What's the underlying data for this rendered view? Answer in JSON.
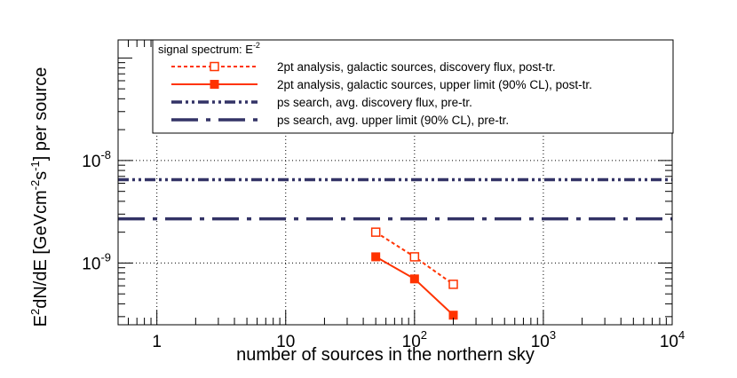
{
  "chart_data": {
    "type": "line",
    "xscale": "log",
    "yscale": "log",
    "xlim": [
      0.5,
      10000
    ],
    "ylim": [
      2.5e-10,
      1.5e-07
    ],
    "grid": true,
    "xlabel": "number of sources in the northern sky",
    "ylabel_main": "E",
    "ylabel_sup1": "2",
    "ylabel_mid": "dN/dE [GeVcm",
    "ylabel_sup2": "-2",
    "ylabel_s": "s",
    "ylabel_sup3": "-1",
    "ylabel_end": "] per source",
    "x_ticks": [
      {
        "value": 1,
        "base": "1",
        "exp": ""
      },
      {
        "value": 10,
        "base": "10",
        "exp": ""
      },
      {
        "value": 100,
        "base": "10",
        "exp": "2"
      },
      {
        "value": 1000,
        "base": "10",
        "exp": "3"
      },
      {
        "value": 10000,
        "base": "10",
        "exp": "4"
      }
    ],
    "y_ticks": [
      {
        "value": 1e-09,
        "base": "10",
        "exp": "-9"
      },
      {
        "value": 1e-08,
        "base": "10",
        "exp": "-8"
      }
    ],
    "legend": {
      "header_main": "signal spectrum: E",
      "header_sup": "-2",
      "placement": "top"
    },
    "series": [
      {
        "name": "2pt analysis, galactic sources, discovery flux, post-tr.",
        "color": "#ff3300",
        "style": "dashed",
        "marker": "open-square",
        "x": [
          50,
          100,
          200
        ],
        "y": [
          2e-09,
          1.15e-09,
          6.2e-10
        ]
      },
      {
        "name": "2pt analysis, galactic sources, upper limit (90% CL), post-tr.",
        "color": "#ff3300",
        "style": "solid",
        "marker": "filled-square",
        "x": [
          50,
          100,
          200
        ],
        "y": [
          1.15e-09,
          7e-10,
          3.1e-10
        ]
      },
      {
        "name": "ps search, avg. discovery flux, pre-tr.",
        "color": "#333366",
        "style": "dash-dot-dot",
        "marker": "none",
        "x": [
          0.5,
          10000
        ],
        "y": [
          6.5e-09,
          6.5e-09
        ]
      },
      {
        "name": "ps search, avg. upper limit (90% CL), pre-tr.",
        "color": "#333366",
        "style": "long-dash-dot",
        "marker": "none",
        "x": [
          0.5,
          10000
        ],
        "y": [
          2.7e-09,
          2.7e-09
        ]
      }
    ]
  }
}
